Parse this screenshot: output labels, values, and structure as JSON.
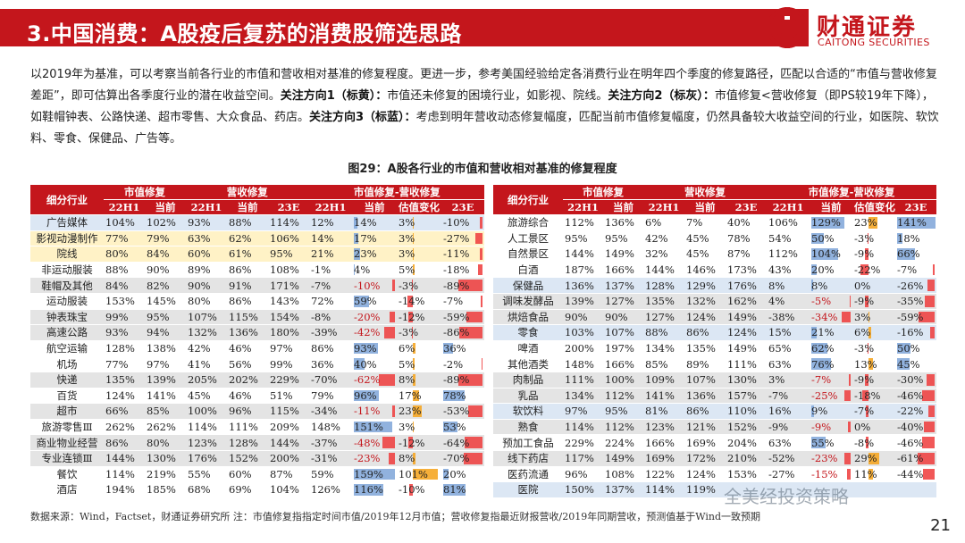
{
  "header": {
    "title": "3.中国消费：A股疫后复苏的消费股筛选思路",
    "logo_cn": "财通证券",
    "logo_en": "CAITONG SECURITIES"
  },
  "desc": {
    "p1": "以2019年为基准，可以考察当前各行业的市值和营收相对基准的修复程度。更进一步，参考美国经验给定各消费行业在明年四个季度的修复路径，匹配以合适的“市值与营收修复差距”，即可估算出各季度行业的潜在收益空间。",
    "dir1_label": "关注方向1（标黄）：",
    "dir1_text": "市值还未修复的困境行业，如影视、院线。",
    "dir2_label": "关注方向2（标灰）：",
    "dir2_text": "市值修复<营收修复（即PS较19年下降），如鞋帽钟表、公路快递、超市零售、大众食品、药店。",
    "dir3_label": "关注方向3（标蓝）：",
    "dir3_text": "考虑到明年营收动态修复幅度，匹配当前市值修复幅度，仍然具备较大收益空间的行业，如医院、软饮料、零食、保健品、广告等。"
  },
  "figure_title": "图29：A股各行业的市值和营收相对基准的修复程度",
  "table_headers": {
    "segment": "细分行业",
    "mv_repair": "市值修复",
    "rev_repair": "营收修复",
    "gap": "市值修复-营收修复",
    "h1": "22H1",
    "now": "当前",
    "e23": "23E",
    "val_change": "估值变化"
  },
  "left_rows": [
    {
      "name": "广告媒体",
      "c": "b",
      "mv1": "104%",
      "mv2": "102%",
      "r1": "93%",
      "r2": "88%",
      "r3": "114%",
      "g1": "12%",
      "g2": "14%",
      "g2v": 14,
      "vc": "3%",
      "vcv": 3,
      "g3": "-10%",
      "g3v": -10
    },
    {
      "name": "影视动漫制作",
      "c": "y",
      "mv1": "77%",
      "mv2": "79%",
      "r1": "63%",
      "r2": "62%",
      "r3": "106%",
      "g1": "14%",
      "g2": "17%",
      "g2v": 17,
      "vc": "3%",
      "vcv": 3,
      "g3": "-27%",
      "g3v": -27
    },
    {
      "name": "院线",
      "c": "y",
      "mv1": "80%",
      "mv2": "84%",
      "r1": "60%",
      "r2": "61%",
      "r3": "95%",
      "g1": "21%",
      "g2": "23%",
      "g2v": 23,
      "vc": "3%",
      "vcv": 3,
      "g3": "-11%",
      "g3v": -11
    },
    {
      "name": "非运动服装",
      "c": "w",
      "mv1": "88%",
      "mv2": "90%",
      "r1": "89%",
      "r2": "86%",
      "r3": "108%",
      "g1": "-1%",
      "g2": "4%",
      "g2v": 4,
      "vc": "5%",
      "vcv": 5,
      "g3": "-18%",
      "g3v": -18
    },
    {
      "name": "鞋帽及其他",
      "c": "g",
      "mv1": "84%",
      "mv2": "82%",
      "r1": "90%",
      "r2": "91%",
      "r3": "171%",
      "g1": "-7%",
      "g2": "-10%",
      "g2v": -10,
      "vc": "-3%",
      "vcv": -3,
      "g3": "-89%",
      "g3v": -89
    },
    {
      "name": "运动服装",
      "c": "w",
      "mv1": "153%",
      "mv2": "145%",
      "r1": "80%",
      "r2": "86%",
      "r3": "143%",
      "g1": "72%",
      "g2": "59%",
      "g2v": 59,
      "vc": "-14%",
      "vcv": -14,
      "g3": "-7%",
      "g3v": -7
    },
    {
      "name": "钟表珠宝",
      "c": "g",
      "mv1": "99%",
      "mv2": "95%",
      "r1": "107%",
      "r2": "115%",
      "r3": "154%",
      "g1": "-8%",
      "g2": "-20%",
      "g2v": -20,
      "vc": "-12%",
      "vcv": -12,
      "g3": "-59%",
      "g3v": -59
    },
    {
      "name": "高速公路",
      "c": "g",
      "mv1": "93%",
      "mv2": "94%",
      "r1": "132%",
      "r2": "136%",
      "r3": "180%",
      "g1": "-39%",
      "g2": "-42%",
      "g2v": -42,
      "vc": "-3%",
      "vcv": -3,
      "g3": "-86%",
      "g3v": -86
    },
    {
      "name": "航空运输",
      "c": "w",
      "mv1": "128%",
      "mv2": "138%",
      "r1": "42%",
      "r2": "46%",
      "r3": "97%",
      "g1": "86%",
      "g2": "93%",
      "g2v": 93,
      "vc": "6%",
      "vcv": 6,
      "g3": "36%",
      "g3v": 36
    },
    {
      "name": "机场",
      "c": "w",
      "mv1": "77%",
      "mv2": "97%",
      "r1": "41%",
      "r2": "56%",
      "r3": "99%",
      "g1": "36%",
      "g2": "40%",
      "g2v": 40,
      "vc": "5%",
      "vcv": 5,
      "g3": "-2%",
      "g3v": -2
    },
    {
      "name": "快递",
      "c": "g",
      "mv1": "135%",
      "mv2": "139%",
      "r1": "205%",
      "r2": "202%",
      "r3": "229%",
      "g1": "-70%",
      "g2": "-62%",
      "g2v": -62,
      "vc": "8%",
      "vcv": 8,
      "g3": "-89%",
      "g3v": -89
    },
    {
      "name": "百货",
      "c": "w",
      "mv1": "124%",
      "mv2": "141%",
      "r1": "45%",
      "r2": "46%",
      "r3": "51%",
      "g1": "79%",
      "g2": "96%",
      "g2v": 96,
      "vc": "17%",
      "vcv": 17,
      "g3": "78%",
      "g3v": 78
    },
    {
      "name": "超市",
      "c": "g",
      "mv1": "66%",
      "mv2": "85%",
      "r1": "100%",
      "r2": "96%",
      "r3": "115%",
      "g1": "-34%",
      "g2": "-11%",
      "g2v": -11,
      "vc": "23%",
      "vcv": 23,
      "g3": "-53%",
      "g3v": -53
    },
    {
      "name": "旅游零售Ⅲ",
      "c": "w",
      "mv1": "262%",
      "mv2": "262%",
      "r1": "114%",
      "r2": "111%",
      "r3": "209%",
      "g1": "148%",
      "g2": "151%",
      "g2v": 151,
      "vc": "3%",
      "vcv": 3,
      "g3": "53%",
      "g3v": 53
    },
    {
      "name": "商业物业经营",
      "c": "g",
      "mv1": "86%",
      "mv2": "80%",
      "r1": "123%",
      "r2": "128%",
      "r3": "144%",
      "g1": "-37%",
      "g2": "-48%",
      "g2v": -48,
      "vc": "-12%",
      "vcv": -12,
      "g3": "-64%",
      "g3v": -64
    },
    {
      "name": "专业连锁Ⅲ",
      "c": "g",
      "mv1": "144%",
      "mv2": "130%",
      "r1": "176%",
      "r2": "152%",
      "r3": "200%",
      "g1": "-31%",
      "g2": "-23%",
      "g2v": -23,
      "vc": "8%",
      "vcv": 8,
      "g3": "-70%",
      "g3v": -70
    },
    {
      "name": "餐饮",
      "c": "w",
      "mv1": "114%",
      "mv2": "219%",
      "r1": "55%",
      "r2": "60%",
      "r3": "87%",
      "g1": "59%",
      "g2": "159%",
      "g2v": 159,
      "vc": "101%",
      "vcv": 101,
      "g3": "20%",
      "g3v": 20
    },
    {
      "name": "酒店",
      "c": "w",
      "mv1": "194%",
      "mv2": "185%",
      "r1": "68%",
      "r2": "69%",
      "r3": "104%",
      "g1": "126%",
      "g2": "116%",
      "g2v": 116,
      "vc": "-10%",
      "vcv": -10,
      "g3": "81%",
      "g3v": 81
    }
  ],
  "right_rows": [
    {
      "name": "旅游综合",
      "c": "w",
      "mv1": "112%",
      "mv2": "136%",
      "r1": "6%",
      "r2": "7%",
      "r3": "40%",
      "g1": "106%",
      "g2": "129%",
      "g2v": 129,
      "vc": "23%",
      "vcv": 23,
      "g3": "141%",
      "g3v": 141
    },
    {
      "name": "人工景区",
      "c": "w",
      "mv1": "95%",
      "mv2": "95%",
      "r1": "42%",
      "r2": "45%",
      "r3": "78%",
      "g1": "54%",
      "g2": "50%",
      "g2v": 50,
      "vc": "-3%",
      "vcv": -3,
      "g3": "18%",
      "g3v": 18
    },
    {
      "name": "自然景区",
      "c": "w",
      "mv1": "144%",
      "mv2": "149%",
      "r1": "32%",
      "r2": "45%",
      "r3": "87%",
      "g1": "112%",
      "g2": "104%",
      "g2v": 104,
      "vc": "-9%",
      "vcv": -9,
      "g3": "66%",
      "g3v": 66
    },
    {
      "name": "白酒",
      "c": "w",
      "mv1": "187%",
      "mv2": "166%",
      "r1": "144%",
      "r2": "146%",
      "r3": "173%",
      "g1": "43%",
      "g2": "20%",
      "g2v": 20,
      "vc": "-22%",
      "vcv": -22,
      "g3": "-7%",
      "g3v": -7
    },
    {
      "name": "保健品",
      "c": "b",
      "mv1": "136%",
      "mv2": "137%",
      "r1": "128%",
      "r2": "129%",
      "r3": "176%",
      "g1": "8%",
      "g2": "8%",
      "g2v": 8,
      "vc": "0%",
      "vcv": 0,
      "g3": "-26%",
      "g3v": -26
    },
    {
      "name": "调味发酵品",
      "c": "g",
      "mv1": "139%",
      "mv2": "127%",
      "r1": "135%",
      "r2": "132%",
      "r3": "162%",
      "g1": "4%",
      "g2": "-5%",
      "g2v": -5,
      "vc": "-9%",
      "vcv": -9,
      "g3": "-35%",
      "g3v": -35
    },
    {
      "name": "烘焙食品",
      "c": "g",
      "mv1": "90%",
      "mv2": "90%",
      "r1": "127%",
      "r2": "124%",
      "r3": "149%",
      "g1": "-38%",
      "g2": "-34%",
      "g2v": -34,
      "vc": "3%",
      "vcv": 3,
      "g3": "-59%",
      "g3v": -59
    },
    {
      "name": "零食",
      "c": "b",
      "mv1": "103%",
      "mv2": "107%",
      "r1": "88%",
      "r2": "86%",
      "r3": "124%",
      "g1": "15%",
      "g2": "21%",
      "g2v": 21,
      "vc": "6%",
      "vcv": 6,
      "g3": "-16%",
      "g3v": -16
    },
    {
      "name": "啤酒",
      "c": "w",
      "mv1": "200%",
      "mv2": "197%",
      "r1": "134%",
      "r2": "135%",
      "r3": "149%",
      "g1": "65%",
      "g2": "62%",
      "g2v": 62,
      "vc": "-3%",
      "vcv": -3,
      "g3": "50%",
      "g3v": 50
    },
    {
      "name": "其他酒类",
      "c": "w",
      "mv1": "148%",
      "mv2": "166%",
      "r1": "85%",
      "r2": "89%",
      "r3": "111%",
      "g1": "63%",
      "g2": "76%",
      "g2v": 76,
      "vc": "13%",
      "vcv": 13,
      "g3": "45%",
      "g3v": 45
    },
    {
      "name": "肉制品",
      "c": "g",
      "mv1": "111%",
      "mv2": "100%",
      "r1": "109%",
      "r2": "107%",
      "r3": "130%",
      "g1": "3%",
      "g2": "-7%",
      "g2v": -7,
      "vc": "-9%",
      "vcv": -9,
      "g3": "-30%",
      "g3v": -30
    },
    {
      "name": "乳品",
      "c": "g",
      "mv1": "134%",
      "mv2": "112%",
      "r1": "141%",
      "r2": "136%",
      "r3": "157%",
      "g1": "-7%",
      "g2": "-25%",
      "g2v": -25,
      "vc": "-18%",
      "vcv": -18,
      "g3": "-46%",
      "g3v": -46
    },
    {
      "name": "软饮料",
      "c": "b",
      "mv1": "97%",
      "mv2": "95%",
      "r1": "81%",
      "r2": "86%",
      "r3": "110%",
      "g1": "16%",
      "g2": "9%",
      "g2v": 9,
      "vc": "-7%",
      "vcv": -7,
      "g3": "-22%",
      "g3v": -22
    },
    {
      "name": "熟食",
      "c": "g",
      "mv1": "114%",
      "mv2": "112%",
      "r1": "123%",
      "r2": "121%",
      "r3": "152%",
      "g1": "-9%",
      "g2": "-9%",
      "g2v": -9,
      "vc": "0%",
      "vcv": 0,
      "g3": "-40%",
      "g3v": -40
    },
    {
      "name": "预加工食品",
      "c": "w",
      "mv1": "229%",
      "mv2": "224%",
      "r1": "166%",
      "r2": "169%",
      "r3": "204%",
      "g1": "63%",
      "g2": "55%",
      "g2v": 55,
      "vc": "-8%",
      "vcv": -8,
      "g3": "-46%",
      "g3v": -46
    },
    {
      "name": "线下药店",
      "c": "g",
      "mv1": "117%",
      "mv2": "149%",
      "r1": "169%",
      "r2": "172%",
      "r3": "210%",
      "g1": "-52%",
      "g2": "-23%",
      "g2v": -23,
      "vc": "29%",
      "vcv": 29,
      "g3": "-61%",
      "g3v": -61
    },
    {
      "name": "医药流通",
      "c": "w",
      "mv1": "96%",
      "mv2": "108%",
      "r1": "122%",
      "r2": "124%",
      "r3": "153%",
      "g1": "-27%",
      "g2": "-15%",
      "g2v": -15,
      "vc": "11%",
      "vcv": 11,
      "g3": "-44%",
      "g3v": -44
    },
    {
      "name": "医院",
      "c": "b",
      "mv1": "150%",
      "mv2": "137%",
      "r1": "114%",
      "r2": "119%",
      "r3": "",
      "g1": "",
      "g2": "",
      "g2v": 0,
      "vc": "",
      "vcv": 0,
      "g3": "",
      "g3v": 0
    }
  ],
  "footnote": "数据来源：Wind，Factset，财通证券研究所    注：市值修复指指定时间市值/2019年12月市值；营收修复指最近财报营收/2019年同期营收，预测值基于Wind一致预期",
  "watermark": "全美经投资策略",
  "page_number": "21",
  "colors": {
    "brand_red": "#c4161c",
    "yellow": "#fff2c6",
    "gray": "#e4e4e4",
    "blue": "#dce7f4"
  }
}
